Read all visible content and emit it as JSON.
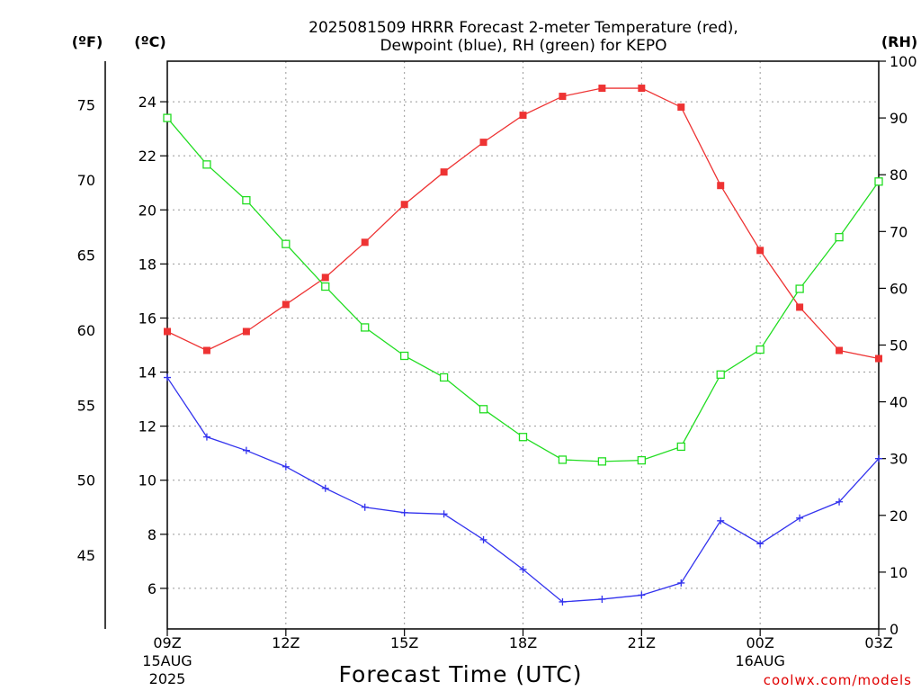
{
  "chart_data": {
    "type": "line",
    "title": "2025081509 HRRR Forecast 2-meter Temperature (red),",
    "subtitle": "Dewpoint (blue), RH (green) for KEPO",
    "xlabel": "Forecast Time (UTC)",
    "units": {
      "fahrenheit": "(ºF)",
      "celsius": "(ºC)",
      "rh": "(RH)"
    },
    "x": [
      "09Z",
      "10Z",
      "11Z",
      "12Z",
      "13Z",
      "14Z",
      "15Z",
      "16Z",
      "17Z",
      "18Z",
      "19Z",
      "20Z",
      "21Z",
      "22Z",
      "23Z",
      "00Z",
      "01Z",
      "02Z",
      "03Z"
    ],
    "x_ticks": [
      {
        "index": 0,
        "label": "09Z",
        "sub1": "15AUG",
        "sub2": "2025"
      },
      {
        "index": 3,
        "label": "12Z",
        "sub1": "",
        "sub2": ""
      },
      {
        "index": 6,
        "label": "15Z",
        "sub1": "",
        "sub2": ""
      },
      {
        "index": 9,
        "label": "18Z",
        "sub1": "",
        "sub2": ""
      },
      {
        "index": 12,
        "label": "21Z",
        "sub1": "",
        "sub2": ""
      },
      {
        "index": 15,
        "label": "00Z",
        "sub1": "16AUG",
        "sub2": ""
      },
      {
        "index": 18,
        "label": "03Z",
        "sub1": "",
        "sub2": ""
      }
    ],
    "celsius_axis": {
      "ylim": [
        4.5,
        25.5
      ],
      "ticks": [
        "6",
        "8",
        "10",
        "12",
        "14",
        "16",
        "18",
        "20",
        "22",
        "24"
      ]
    },
    "fahrenheit_axis": {
      "ticks": [
        "45",
        "50",
        "55",
        "60",
        "65",
        "70",
        "75"
      ]
    },
    "rh_axis": {
      "ylim": [
        0,
        100
      ],
      "ticks": [
        "0",
        "10",
        "20",
        "30",
        "40",
        "50",
        "60",
        "70",
        "80",
        "90",
        "100"
      ]
    },
    "grid": true,
    "series": [
      {
        "name": "Temperature",
        "axis": "celsius",
        "color": "#ee3333",
        "marker": "filled-square",
        "values": [
          15.5,
          14.8,
          15.5,
          16.5,
          17.5,
          18.8,
          20.2,
          21.4,
          22.5,
          23.5,
          24.2,
          24.5,
          24.5,
          23.8,
          20.9,
          18.5,
          16.4,
          14.8,
          14.5
        ]
      },
      {
        "name": "Dewpoint",
        "axis": "celsius",
        "color": "#3333ee",
        "marker": "plus",
        "values": [
          13.8,
          11.6,
          11.1,
          10.5,
          9.7,
          9.0,
          8.8,
          8.75,
          7.8,
          6.7,
          5.5,
          5.6,
          5.75,
          6.2,
          8.5,
          7.65,
          8.6,
          9.2,
          10.8
        ]
      },
      {
        "name": "RH",
        "axis": "rh",
        "color": "#22dd22",
        "marker": "open-square",
        "values": [
          90,
          81.8,
          75.5,
          67.8,
          60.3,
          53.1,
          48.1,
          44.3,
          38.7,
          33.8,
          29.8,
          29.5,
          29.7,
          32.1,
          44.8,
          49.2,
          59.9,
          69.0,
          78.8
        ]
      }
    ],
    "credit": "coolwx.com/models"
  }
}
